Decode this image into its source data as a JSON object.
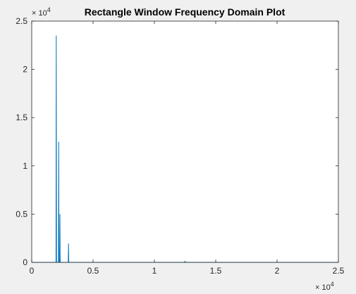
{
  "chart_data": {
    "type": "line",
    "title": "Rectangle Window Frequency Domain Plot",
    "xlabel": "",
    "ylabel": "",
    "xlim": [
      0,
      25000
    ],
    "ylim": [
      0,
      25000
    ],
    "x_ticks": [
      0,
      5000,
      10000,
      15000,
      20000,
      25000
    ],
    "x_tick_labels": [
      "0",
      "0.5",
      "1",
      "1.5",
      "2",
      "2.5"
    ],
    "y_ticks": [
      0,
      5000,
      10000,
      15000,
      20000,
      25000
    ],
    "y_tick_labels": [
      "0",
      "0.5",
      "1",
      "1.5",
      "2",
      "2.5"
    ],
    "x_exponent_label": "× 10^4",
    "y_exponent_label": "× 10^4",
    "grid": false,
    "line_color": "#0072bd",
    "series": [
      {
        "x": [
          0,
          1980,
          2000,
          2020,
          2180,
          2200,
          2220,
          2280,
          2300,
          2320,
          2980,
          3000,
          3020,
          12480,
          12500,
          12520,
          25000
        ],
        "y": [
          0,
          0,
          23500,
          0,
          0,
          12500,
          0,
          0,
          5000,
          0,
          0,
          1950,
          0,
          0,
          150,
          0,
          0
        ]
      }
    ]
  }
}
